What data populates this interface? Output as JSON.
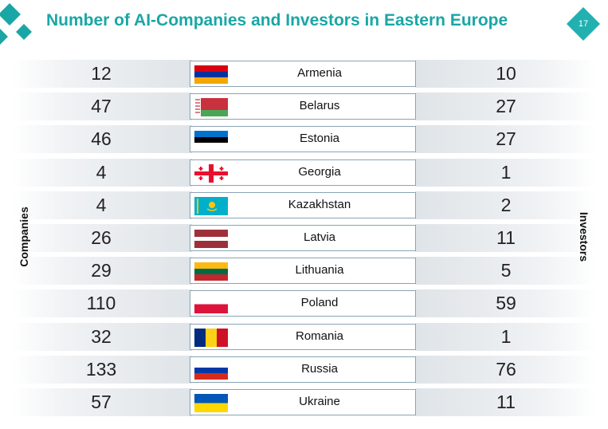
{
  "header": {
    "title": "Number of AI-Companies and Investors in Eastern Europe",
    "page_number": "17"
  },
  "colors": {
    "accent": "#1aa6a6",
    "badge": "#22b0b0"
  },
  "chart_data": {
    "type": "table",
    "title": "Number of AI-Companies and Investors in Eastern Europe",
    "left_label": "Companies",
    "right_label": "Investors",
    "categories": [
      "Armenia",
      "Belarus",
      "Estonia",
      "Georgia",
      "Kazakhstan",
      "Latvia",
      "Lithuania",
      "Poland",
      "Romania",
      "Russia",
      "Ukraine"
    ],
    "series": [
      {
        "name": "Companies",
        "values": [
          12,
          47,
          46,
          4,
          4,
          26,
          29,
          110,
          32,
          133,
          57
        ]
      },
      {
        "name": "Investors",
        "values": [
          10,
          27,
          27,
          1,
          2,
          11,
          5,
          59,
          1,
          76,
          11
        ]
      }
    ],
    "flags": [
      "armenia-flag",
      "belarus-flag",
      "estonia-flag",
      "georgia-flag",
      "kazakhstan-flag",
      "latvia-flag",
      "lithuania-flag",
      "poland-flag",
      "romania-flag",
      "russia-flag",
      "ukraine-flag"
    ]
  }
}
